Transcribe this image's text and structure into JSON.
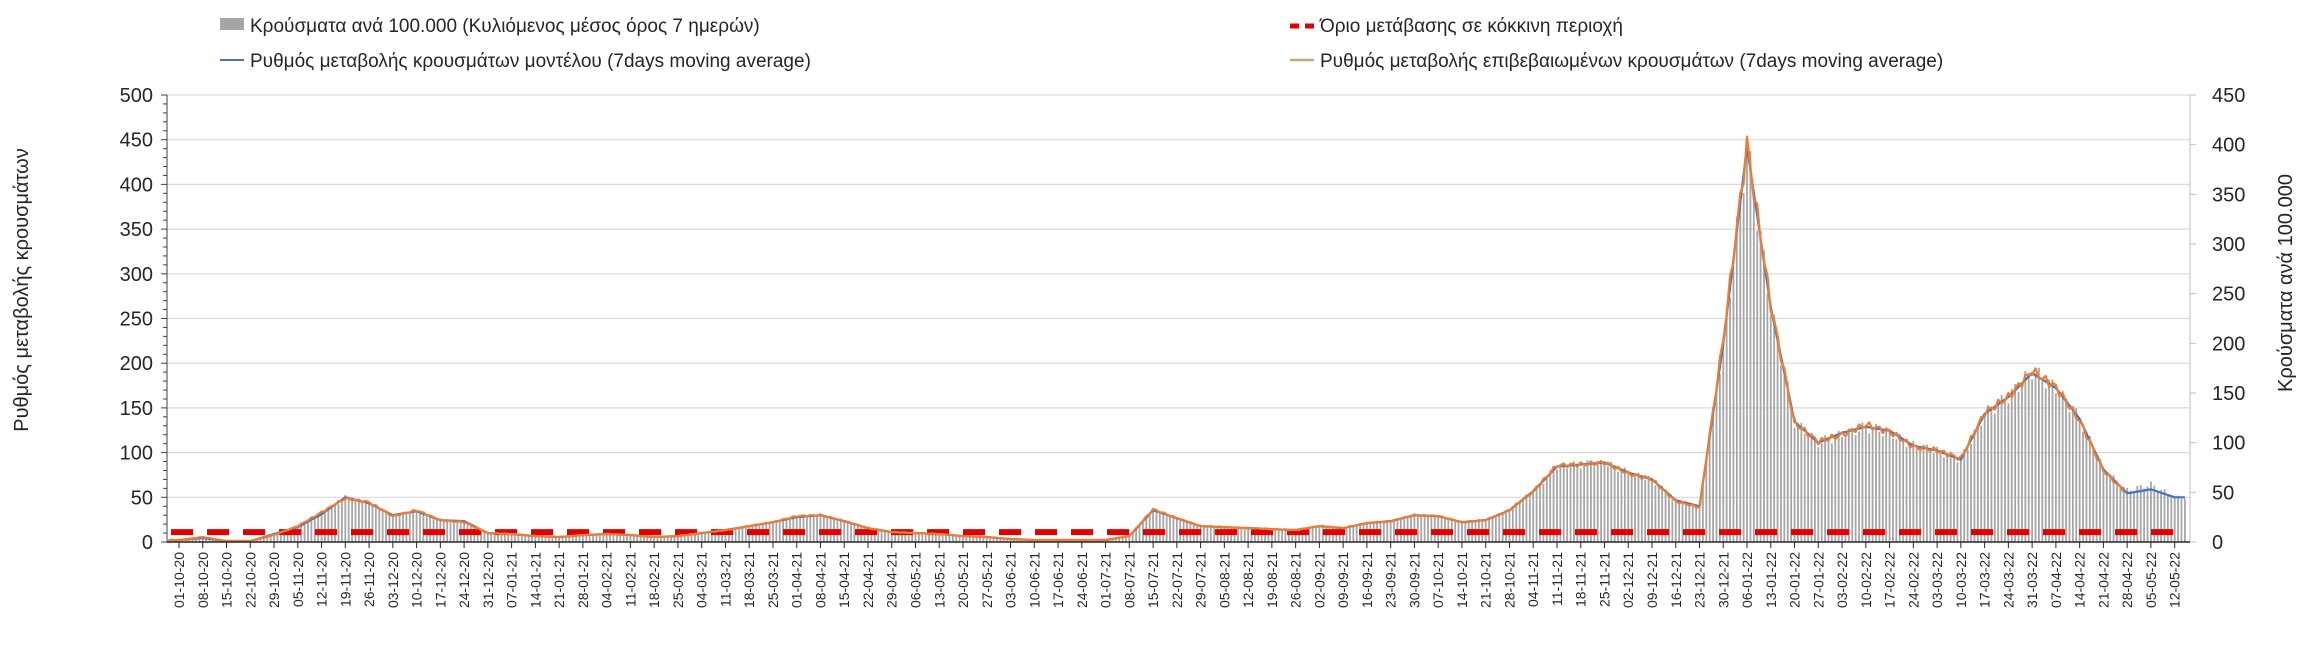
{
  "chart_data": {
    "type": "bar+line",
    "title": "",
    "legend": [
      {
        "key": "bars",
        "label": "Κρούσματα ανά 100.000 (Κυλιόμενος μέσος όρος 7 ημερών)",
        "color": "#a6a6a6"
      },
      {
        "key": "model",
        "label": "Ρυθμός μεταβολής κρουσμάτων μοντέλου (7days moving average)",
        "color": "#4472c4"
      },
      {
        "key": "threshold",
        "label": "Όριο μετάβασης σε κόκκινη περιοχή",
        "color": "#e00000"
      },
      {
        "key": "confirmed",
        "label": "Ρυθμός μεταβολής επιβεβαιωμένων κρουσμάτων (7days moving average)",
        "color": "#ed7d31"
      }
    ],
    "legend_placement": "top",
    "ylabel_left": "Ρυθμός μεταβολής κρουσμάτων",
    "ylabel_right": "Κρούσματα ανά 100.000",
    "ylim_left": [
      0,
      500
    ],
    "yticks_left": [
      "0",
      "50",
      "100",
      "150",
      "200",
      "250",
      "300",
      "350",
      "400",
      "450",
      "500"
    ],
    "ylim_right": [
      0,
      450
    ],
    "yticks_right": [
      "0",
      "50",
      "100",
      "150",
      "200",
      "250",
      "300",
      "350",
      "400",
      "450"
    ],
    "grid": true,
    "x_label_step_days": 7,
    "x": [
      "01-10-20",
      "08-10-20",
      "15-10-20",
      "22-10-20",
      "29-10-20",
      "05-11-20",
      "12-11-20",
      "19-11-20",
      "26-11-20",
      "03-12-20",
      "10-12-20",
      "17-12-20",
      "24-12-20",
      "31-12-20",
      "07-01-21",
      "14-01-21",
      "21-01-21",
      "28-01-21",
      "04-02-21",
      "11-02-21",
      "18-02-21",
      "25-02-21",
      "04-03-21",
      "11-03-21",
      "18-03-21",
      "25-03-21",
      "01-04-21",
      "08-04-21",
      "15-04-21",
      "22-04-21",
      "29-04-21",
      "06-05-21",
      "13-05-21",
      "20-05-21",
      "27-05-21",
      "03-06-21",
      "10-06-21",
      "17-06-21",
      "24-06-21",
      "01-07-21",
      "08-07-21",
      "15-07-21",
      "22-07-21",
      "29-07-21",
      "05-08-21",
      "12-08-21",
      "19-08-21",
      "26-08-21",
      "02-09-21",
      "09-09-21",
      "16-09-21",
      "23-09-21",
      "30-09-21",
      "07-10-21",
      "14-10-21",
      "21-10-21",
      "28-10-21",
      "04-11-21",
      "11-11-21",
      "18-11-21",
      "25-11-21",
      "02-12-21",
      "09-12-21",
      "16-12-21",
      "23-12-21",
      "30-12-21",
      "06-01-22",
      "13-01-22",
      "20-01-22",
      "27-01-22",
      "03-02-22",
      "10-02-22",
      "17-02-22",
      "24-02-22",
      "03-03-22",
      "10-03-22",
      "17-03-22",
      "24-03-22",
      "31-03-22",
      "07-04-22",
      "14-04-22",
      "21-04-22",
      "28-04-22",
      "05-05-22",
      "12-05-22"
    ],
    "series_axis": "right",
    "series": [
      {
        "name": "bars",
        "values": [
          2,
          4,
          1,
          1,
          8,
          15,
          28,
          45,
          39,
          27,
          31,
          22,
          21,
          9,
          8,
          6,
          5,
          7,
          8,
          7,
          5,
          6,
          9,
          12,
          16,
          20,
          25,
          27,
          21,
          14,
          10,
          9,
          8,
          6,
          5,
          3,
          2,
          2,
          2,
          2,
          6,
          32,
          24,
          16,
          15,
          14,
          13,
          12,
          16,
          14,
          19,
          21,
          27,
          26,
          20,
          22,
          32,
          51,
          76,
          78,
          80,
          70,
          63,
          42,
          36,
          200,
          398,
          236,
          121,
          100,
          108,
          116,
          110,
          97,
          92,
          83,
          129,
          146,
          172,
          155,
          124,
          73,
          52,
          58,
          45
        ]
      },
      {
        "name": "model",
        "values": [
          2,
          4,
          1,
          1,
          8,
          15,
          28,
          45,
          39,
          27,
          31,
          22,
          21,
          9,
          8,
          6,
          5,
          7,
          8,
          7,
          5,
          6,
          9,
          12,
          16,
          20,
          25,
          27,
          21,
          14,
          10,
          9,
          8,
          6,
          5,
          3,
          2,
          2,
          2,
          2,
          6,
          32,
          24,
          16,
          15,
          14,
          13,
          12,
          16,
          14,
          19,
          21,
          27,
          26,
          20,
          22,
          32,
          51,
          76,
          78,
          80,
          70,
          63,
          42,
          36,
          200,
          398,
          236,
          121,
          100,
          110,
          116,
          112,
          97,
          92,
          83,
          129,
          146,
          170,
          155,
          124,
          73,
          49,
          53,
          45
        ]
      },
      {
        "name": "confirmed",
        "values": [
          2,
          5,
          1,
          1,
          7,
          16,
          30,
          44,
          40,
          26,
          32,
          22,
          20,
          9,
          8,
          6,
          5,
          7,
          8,
          7,
          5,
          6,
          9,
          12,
          16,
          20,
          26,
          27,
          21,
          14,
          10,
          9,
          8,
          6,
          5,
          3,
          2,
          2,
          2,
          2,
          6,
          33,
          24,
          16,
          15,
          14,
          13,
          12,
          16,
          14,
          19,
          21,
          27,
          26,
          20,
          22,
          32,
          51,
          77,
          78,
          80,
          69,
          63,
          41,
          35,
          205,
          400,
          238,
          120,
          101,
          108,
          118,
          111,
          96,
          92,
          84,
          130,
          146,
          172,
          156,
          122,
          72,
          48,
          null,
          null
        ]
      },
      {
        "name": "threshold",
        "constant": 10
      }
    ]
  }
}
